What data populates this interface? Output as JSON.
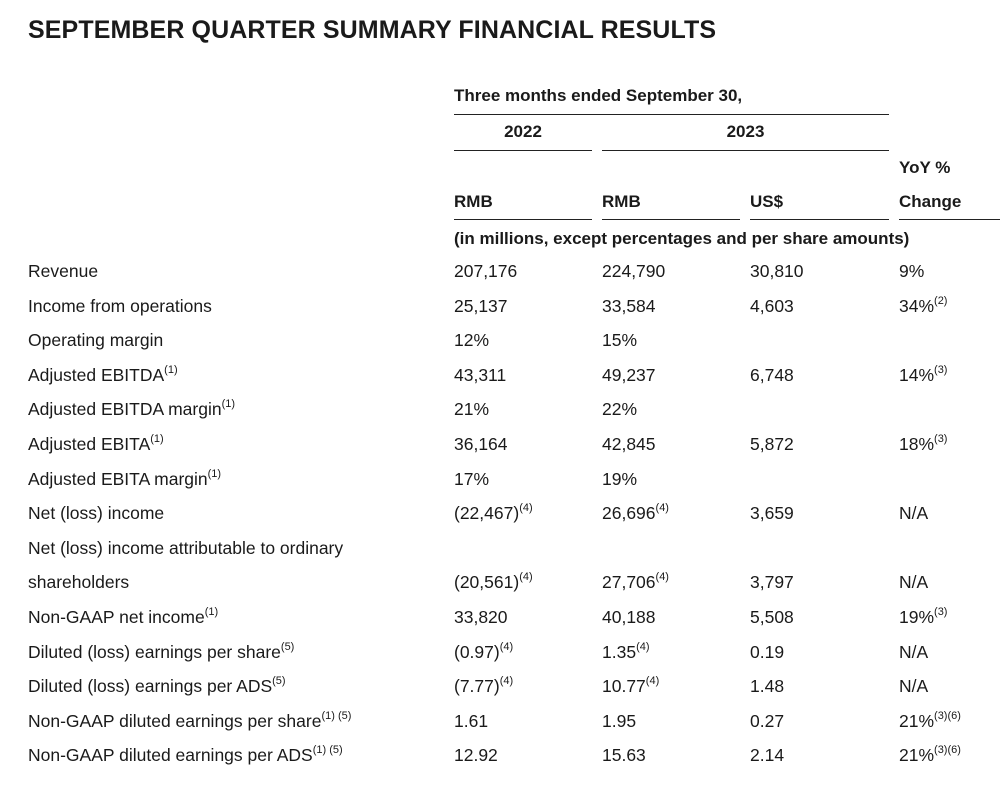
{
  "title": "SEPTEMBER QUARTER SUMMARY FINANCIAL RESULTS",
  "header": {
    "period": "Three months ended September 30,",
    "year1": "2022",
    "year2": "2023",
    "cur1": "RMB",
    "cur2": "RMB",
    "cur3": "US$",
    "yoy_line1": "YoY %",
    "yoy_line2": "Change",
    "units_note": "(in millions, except percentages and per share amounts)"
  },
  "rows": [
    {
      "label": "Revenue",
      "label_sup": "",
      "c1": "207,176",
      "c1_sup": "",
      "c2": "224,790",
      "c2_sup": "",
      "c3": "30,810",
      "c4": "9%",
      "c4_sup": ""
    },
    {
      "label": "Income from operations",
      "label_sup": "",
      "c1": "25,137",
      "c1_sup": "",
      "c2": "33,584",
      "c2_sup": "",
      "c3": "4,603",
      "c4": "34%",
      "c4_sup": "(2)"
    },
    {
      "label": "Operating margin",
      "label_sup": "",
      "c1": "12%",
      "c1_sup": "",
      "c2": "15%",
      "c2_sup": "",
      "c3": "",
      "c4": "",
      "c4_sup": ""
    },
    {
      "label": "Adjusted EBITDA",
      "label_sup": "(1)",
      "c1": "43,311",
      "c1_sup": "",
      "c2": "49,237",
      "c2_sup": "",
      "c3": "6,748",
      "c4": "14%",
      "c4_sup": "(3)"
    },
    {
      "label": "Adjusted EBITDA margin",
      "label_sup": "(1)",
      "c1": "21%",
      "c1_sup": "",
      "c2": "22%",
      "c2_sup": "",
      "c3": "",
      "c4": "",
      "c4_sup": ""
    },
    {
      "label": "Adjusted EBITA",
      "label_sup": "(1)",
      "c1": "36,164",
      "c1_sup": "",
      "c2": "42,845",
      "c2_sup": "",
      "c3": "5,872",
      "c4": "18%",
      "c4_sup": "(3)"
    },
    {
      "label": "Adjusted EBITA margin",
      "label_sup": "(1)",
      "c1": "17%",
      "c1_sup": "",
      "c2": "19%",
      "c2_sup": "",
      "c3": "",
      "c4": "",
      "c4_sup": ""
    },
    {
      "label": "Net (loss) income",
      "label_sup": "",
      "c1": "(22,467)",
      "c1_sup": "(4)",
      "c2": "26,696",
      "c2_sup": "(4)",
      "c3": "3,659",
      "c4": "N/A",
      "c4_sup": ""
    },
    {
      "label": "Net (loss) income attributable to ordinary",
      "label_sup": "",
      "c1": "",
      "c1_sup": "",
      "c2": "",
      "c2_sup": "",
      "c3": "",
      "c4": "",
      "c4_sup": ""
    },
    {
      "label": "shareholders",
      "label_sup": "",
      "c1": "(20,561)",
      "c1_sup": "(4)",
      "c2": "27,706",
      "c2_sup": "(4)",
      "c3": "3,797",
      "c4": "N/A",
      "c4_sup": ""
    },
    {
      "label": "Non-GAAP net income",
      "label_sup": "(1)",
      "c1": "33,820",
      "c1_sup": "",
      "c2": "40,188",
      "c2_sup": "",
      "c3": "5,508",
      "c4": "19%",
      "c4_sup": "(3)"
    },
    {
      "label": "Diluted (loss) earnings per share",
      "label_sup": "(5)",
      "c1": "(0.97)",
      "c1_sup": "(4)",
      "c2": "1.35",
      "c2_sup": "(4)",
      "c3": "0.19",
      "c4": "N/A",
      "c4_sup": ""
    },
    {
      "label": "Diluted (loss) earnings per ADS",
      "label_sup": "(5)",
      "c1": "(7.77)",
      "c1_sup": "(4)",
      "c2": "10.77",
      "c2_sup": "(4)",
      "c3": "1.48",
      "c4": "N/A",
      "c4_sup": ""
    },
    {
      "label": "Non-GAAP diluted earnings per share",
      "label_sup": "(1) (5)",
      "c1": "1.61",
      "c1_sup": "",
      "c2": "1.95",
      "c2_sup": "",
      "c3": "0.27",
      "c4": "21%",
      "c4_sup": "(3)(6)"
    },
    {
      "label": "Non-GAAP diluted earnings per ADS",
      "label_sup": "(1) (5)",
      "c1": "12.92",
      "c1_sup": "",
      "c2": "15.63",
      "c2_sup": "",
      "c3": "2.14",
      "c4": "21%",
      "c4_sup": "(3)(6)"
    }
  ]
}
